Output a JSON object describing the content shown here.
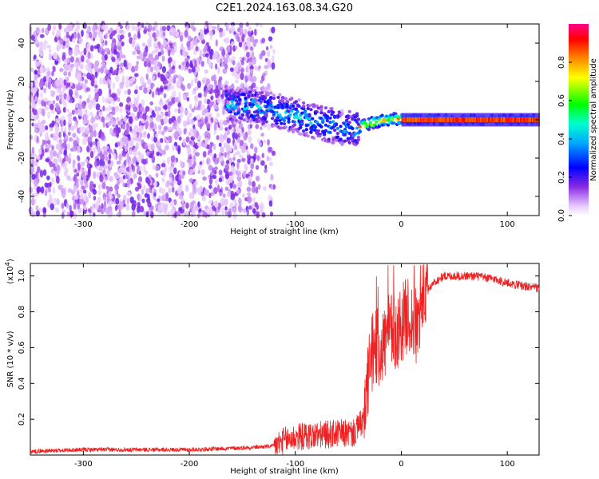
{
  "title": "C2E1.2024.163.08.34.G20",
  "spectrogram": {
    "type": "heatmap",
    "xlabel": "Height of straight line (km)",
    "ylabel": "Frequency (Hz)",
    "xlim": [
      -350,
      130
    ],
    "ylim": [
      -50,
      50
    ],
    "xticks": [
      -300,
      -200,
      -100,
      0,
      100
    ],
    "yticks": [
      -40,
      -20,
      0,
      20,
      40
    ],
    "colorbar": {
      "label": "Normalized spectral amplitude",
      "range": [
        0,
        1
      ],
      "ticks": [
        "0.0",
        "0.2",
        "0.4",
        "0.6",
        "0.8"
      ],
      "tick_values": [
        0.0,
        0.2,
        0.4,
        0.6,
        0.8
      ]
    },
    "ridge": [
      [
        -160,
        8
      ],
      [
        -140,
        7
      ],
      [
        -120,
        5
      ],
      [
        -100,
        2
      ],
      [
        -80,
        -1
      ],
      [
        -60,
        -4
      ],
      [
        -45,
        -5
      ],
      [
        -30,
        -2
      ],
      [
        -15,
        0
      ],
      [
        0,
        0.5
      ],
      [
        50,
        0
      ],
      [
        100,
        0
      ],
      [
        130,
        0
      ]
    ]
  },
  "chart_data": {
    "type": "line",
    "title": "",
    "xlabel": "Height of straight line (km)",
    "ylabel": "SNR (10 * v/v)",
    "yunit": "(x10",
    "yunit_exp": "4",
    "yunit_close": ")",
    "xlim": [
      -350,
      130
    ],
    "ylim": [
      0,
      1.07
    ],
    "xticks": [
      -300,
      -200,
      -100,
      0,
      100
    ],
    "yticks": [
      0.2,
      0.4,
      0.6,
      0.8,
      1.0
    ],
    "series": [
      {
        "color": "#ee2222",
        "x": [
          -350,
          -300,
          -250,
          -200,
          -150,
          -120,
          -110,
          -100,
          -80,
          -60,
          -45,
          -35,
          -30,
          -25,
          -20,
          -15,
          -10,
          -5,
          0,
          5,
          10,
          15,
          20,
          30,
          40,
          50,
          60,
          70,
          80,
          90,
          100,
          110,
          120,
          130
        ],
        "y": [
          0.02,
          0.03,
          0.03,
          0.03,
          0.04,
          0.05,
          0.08,
          0.1,
          0.11,
          0.12,
          0.12,
          0.2,
          0.5,
          0.62,
          0.58,
          0.64,
          0.7,
          0.68,
          0.73,
          0.78,
          0.75,
          0.7,
          0.88,
          0.96,
          1.0,
          1.0,
          1.0,
          1.0,
          0.99,
          0.98,
          0.96,
          0.95,
          0.94,
          0.93
        ]
      }
    ]
  }
}
